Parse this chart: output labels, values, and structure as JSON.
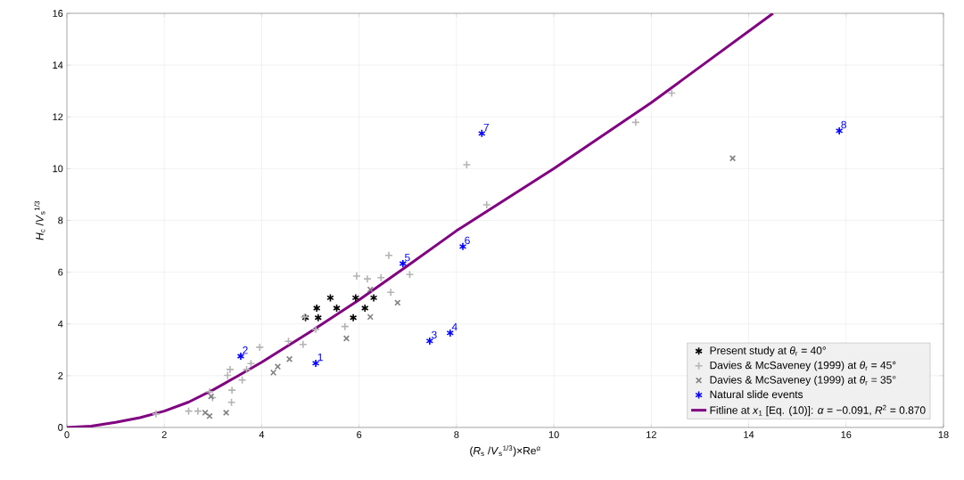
{
  "chart_data": {
    "type": "scatter",
    "xlabel": "(*R*$_{s}$ /*V*$_{s}$$^{1/3}$)×Re$^{α}$",
    "ylabel": "*H*$_{c}$ /*V*$_{s}$$^{1/3}$",
    "xlim": [
      0,
      18
    ],
    "ylim": [
      0,
      16
    ],
    "xticks": [
      0,
      2,
      4,
      6,
      8,
      10,
      12,
      14,
      16,
      18
    ],
    "yticks": [
      0,
      2,
      4,
      6,
      8,
      10,
      12,
      14,
      16
    ],
    "grid": true,
    "legend": "bottom right",
    "series": [
      {
        "name": "Present study at *θ*$_{r}$ = 40°",
        "color": "#000000",
        "marker": "cross",
        "x": [
          4.9,
          5.13,
          5.16,
          5.41,
          5.54,
          5.88,
          5.93,
          6.12,
          6.3
        ],
        "values": [
          4.24,
          4.61,
          4.24,
          5.01,
          4.61,
          4.24,
          5.01,
          4.61,
          5.01
        ]
      },
      {
        "name": "Davies & McSaveney (1999) at *θ*$_{r}$ = 45°",
        "color": "#b4b4b4",
        "marker": "plus",
        "x": [
          1.83,
          2.5,
          2.69,
          2.93,
          2.99,
          3.3,
          3.35,
          3.39,
          3.38,
          3.6,
          3.69,
          3.78,
          3.96,
          4.55,
          4.85,
          4.88,
          5.11,
          5.71,
          5.95,
          6.17,
          6.45,
          6.61,
          6.65,
          7.04,
          8.21,
          8.62,
          11.68,
          12.42
        ],
        "values": [
          0.52,
          0.63,
          0.63,
          1.38,
          1.15,
          2.01,
          2.24,
          1.44,
          0.97,
          1.83,
          2.24,
          2.47,
          3.1,
          3.33,
          3.21,
          4.27,
          3.79,
          3.9,
          5.85,
          5.74,
          5.79,
          6.65,
          5.22,
          5.91,
          10.15,
          8.6,
          11.79,
          12.92
        ]
      },
      {
        "name": "Davies & McSaveney (1999) at *θ*$_{r}$ = 35°",
        "color": "#808080",
        "marker": "x",
        "x": [
          2.84,
          2.93,
          2.96,
          3.27,
          4.24,
          4.33,
          4.57,
          5.74,
          6.23,
          6.23,
          6.79,
          13.67
        ],
        "values": [
          0.57,
          0.44,
          1.2,
          0.57,
          2.12,
          2.35,
          2.64,
          3.44,
          5.33,
          4.27,
          4.82,
          10.4
        ]
      },
      {
        "name": "Natural slide events",
        "color": "#0000ff",
        "marker": "cross",
        "x": [
          5.11,
          3.57,
          7.45,
          7.87,
          6.9,
          8.13,
          8.52,
          15.86
        ],
        "values": [
          2.48,
          2.75,
          3.34,
          3.65,
          6.33,
          6.99,
          11.36,
          11.46
        ]
      },
      {
        "name": "Fitline at *x*$_{1}$ [Eq. (10)]: *α* = −0.091, *R*$^{2}$ = 0.870",
        "type": "line",
        "color": "#800080",
        "marker": "none",
        "x": [
          0,
          0.5,
          1,
          1.5,
          2,
          2.5,
          3,
          3.5,
          4,
          5,
          6,
          7,
          8,
          10,
          12,
          14.5
        ],
        "values": [
          0,
          0.05,
          0.2,
          0.38,
          0.63,
          0.98,
          1.45,
          1.98,
          2.52,
          3.7,
          4.93,
          6.25,
          7.6,
          10.0,
          12.55,
          16
        ]
      }
    ],
    "annotations": [
      {
        "text": "1",
        "x": 5.11,
        "y": 2.48
      },
      {
        "text": "2",
        "x": 3.57,
        "y": 2.75
      },
      {
        "text": "3",
        "x": 7.45,
        "y": 3.34
      },
      {
        "text": "4",
        "x": 7.87,
        "y": 3.65
      },
      {
        "text": "5",
        "x": 6.9,
        "y": 6.33
      },
      {
        "text": "6",
        "x": 8.13,
        "y": 6.99
      },
      {
        "text": "7",
        "x": 8.52,
        "y": 11.36
      },
      {
        "text": "8",
        "x": 15.86,
        "y": 11.46
      }
    ]
  }
}
